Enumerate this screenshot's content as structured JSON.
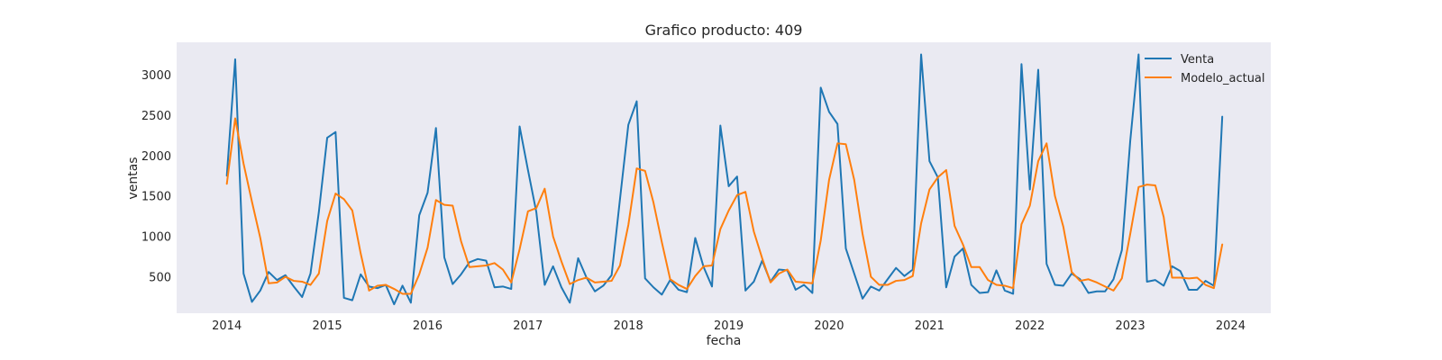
{
  "chart_data": {
    "type": "line",
    "title": "Grafico producto: 409",
    "xlabel": "fecha",
    "ylabel": "ventas",
    "xlim": [
      2013.5,
      2024.4
    ],
    "ylim": [
      50,
      3400
    ],
    "x_ticks": [
      2014,
      2015,
      2016,
      2017,
      2018,
      2019,
      2020,
      2021,
      2022,
      2023,
      2024
    ],
    "x_tick_labels": [
      "2014",
      "2015",
      "2016",
      "2017",
      "2018",
      "2019",
      "2020",
      "2021",
      "2022",
      "2023",
      "2024"
    ],
    "y_ticks": [
      500,
      1000,
      1500,
      2000,
      2500,
      3000
    ],
    "y_tick_labels": [
      "500",
      "1000",
      "1500",
      "2000",
      "2500",
      "3000"
    ],
    "grid": false,
    "background": "#eaeaf2",
    "legend_position": "top-right",
    "x_start": 2014,
    "x_step": 0.0833333,
    "series": [
      {
        "name": "Venta",
        "color": "#1f77b4",
        "values": [
          1750,
          3190,
          540,
          190,
          330,
          560,
          460,
          520,
          380,
          250,
          540,
          1300,
          2220,
          2290,
          240,
          210,
          530,
          380,
          360,
          400,
          160,
          390,
          180,
          1260,
          1540,
          2340,
          740,
          410,
          530,
          680,
          720,
          700,
          370,
          380,
          350,
          2360,
          1820,
          1300,
          400,
          630,
          370,
          180,
          730,
          490,
          320,
          390,
          520,
          1460,
          2380,
          2670,
          480,
          370,
          280,
          460,
          340,
          310,
          980,
          620,
          380,
          2370,
          1620,
          1740,
          330,
          440,
          700,
          440,
          590,
          580,
          340,
          400,
          300,
          2840,
          2540,
          2390,
          850,
          540,
          230,
          380,
          330,
          470,
          610,
          510,
          590,
          3250,
          1930,
          1730,
          370,
          750,
          850,
          400,
          300,
          310,
          580,
          330,
          290,
          3130,
          1580,
          3060,
          660,
          400,
          390,
          540,
          470,
          300,
          320,
          320,
          470,
          830,
          2180,
          3250,
          440,
          460,
          390,
          630,
          570,
          340,
          340,
          450,
          390,
          2480
        ]
      },
      {
        "name": "Modelo_actual",
        "color": "#ff7f0e",
        "values": [
          1650,
          2460,
          1900,
          1430,
          980,
          420,
          430,
          500,
          450,
          440,
          400,
          540,
          1190,
          1530,
          1460,
          1320,
          790,
          330,
          390,
          400,
          350,
          290,
          290,
          530,
          860,
          1450,
          1390,
          1380,
          940,
          620,
          630,
          640,
          670,
          590,
          430,
          840,
          1310,
          1350,
          1590,
          1000,
          690,
          410,
          460,
          490,
          430,
          440,
          450,
          640,
          1140,
          1840,
          1810,
          1420,
          930,
          470,
          400,
          350,
          510,
          630,
          640,
          1090,
          1320,
          1510,
          1550,
          1060,
          730,
          430,
          540,
          590,
          440,
          430,
          420,
          950,
          1700,
          2150,
          2140,
          1700,
          1030,
          500,
          400,
          400,
          450,
          460,
          510,
          1160,
          1580,
          1730,
          1820,
          1130,
          900,
          620,
          620,
          460,
          400,
          390,
          360,
          1150,
          1380,
          1930,
          2150,
          1500,
          1120,
          560,
          450,
          470,
          430,
          380,
          330,
          480,
          1030,
          1610,
          1640,
          1630,
          1240,
          490,
          490,
          480,
          490,
          400,
          360,
          900
        ]
      }
    ]
  }
}
